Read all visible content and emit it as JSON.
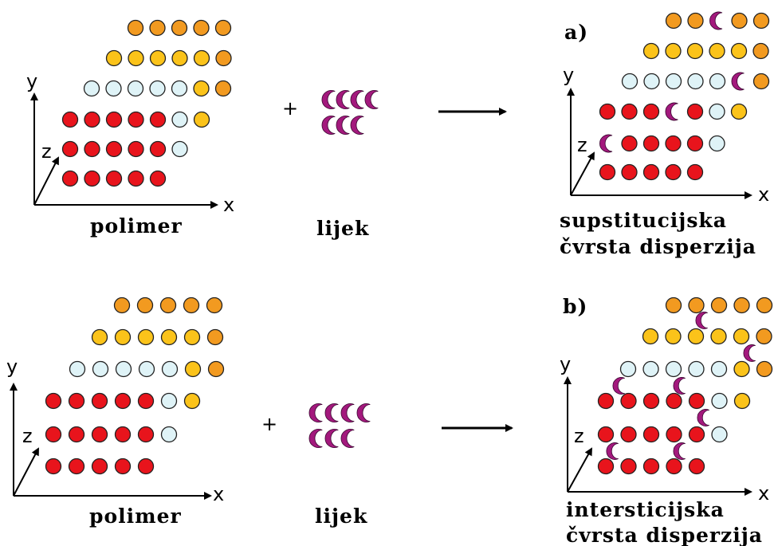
{
  "labels": {
    "polimer": "polimer",
    "lijek": "lijek",
    "plus": "+",
    "a_tag": "a)",
    "b_tag": "b)",
    "result_a_line1": "supstitucijska",
    "result_a_line2": "čvrsta disperzija",
    "result_b_line1": "intersticijska",
    "result_b_line2": "čvrsta disperzija",
    "axis_x": "x",
    "axis_y": "y",
    "axis_z": "z"
  },
  "colors": {
    "red": "#e8141c",
    "lightblue": "#dff3f7",
    "yellow": "#fbc31a",
    "orange": "#f29a20",
    "drug": "#a3197d",
    "outline": "#222222"
  }
}
